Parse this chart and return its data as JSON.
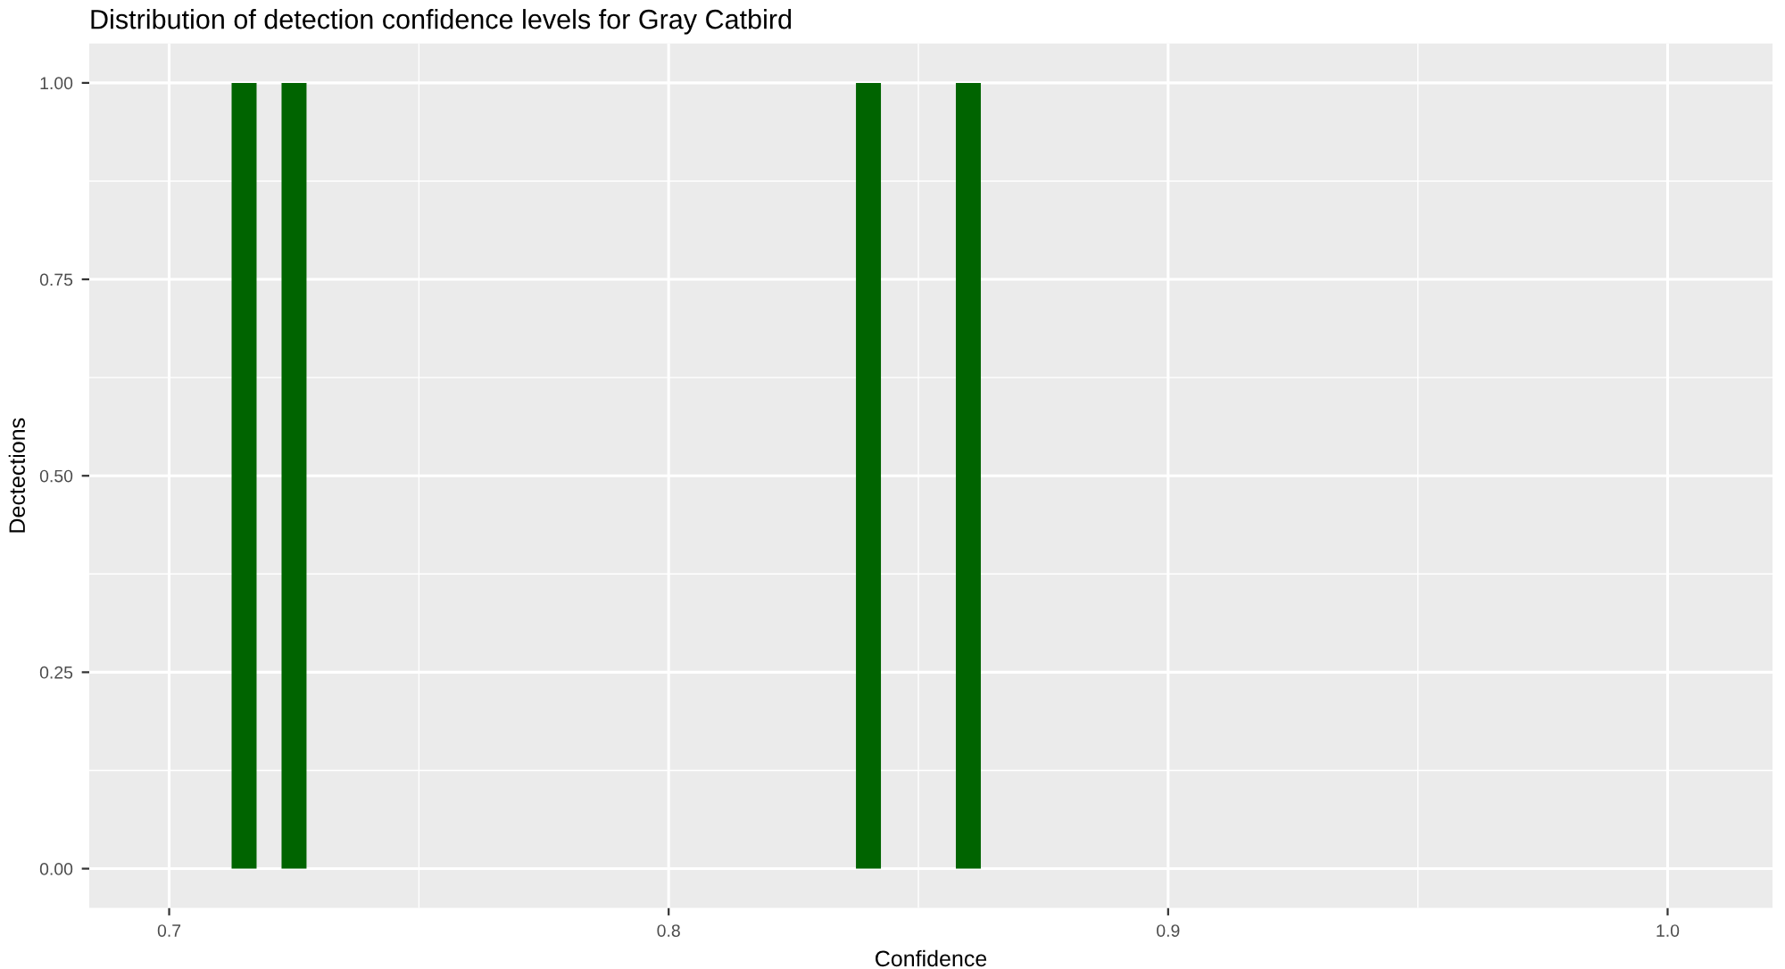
{
  "chart_data": {
    "type": "histogram",
    "title": "Distribution of detection confidence levels for Gray Catbird",
    "xlabel": "Confidence",
    "ylabel": "Dectections",
    "bins": [
      0.7125,
      0.7175,
      0.7225,
      0.7275,
      0.7325,
      0.7375,
      0.7425,
      0.7475,
      0.7525,
      0.7575,
      0.7625,
      0.7675,
      0.7725,
      0.7775,
      0.7825,
      0.7875,
      0.7925,
      0.7975,
      0.8025,
      0.8075,
      0.8125,
      0.8175,
      0.8225,
      0.8275,
      0.8325,
      0.8375,
      0.8425,
      0.8475,
      0.8525,
      0.8575,
      0.8625
    ],
    "values": [
      1,
      0,
      1,
      0,
      0,
      0,
      0,
      0,
      0,
      0,
      0,
      0,
      0,
      0,
      0,
      0,
      0,
      0,
      0,
      0,
      0,
      0,
      0,
      0,
      0,
      1,
      0,
      0,
      0,
      1
    ],
    "color": "#006400",
    "xlim": [
      0.684,
      1.021
    ],
    "xticks": [
      0.7,
      0.8,
      0.9,
      {
        "value": 1,
        "label": "1.0"
      }
    ],
    "ylim": [
      -0.05,
      1.05
    ],
    "yticks": [
      {
        "value": 0,
        "label": "0.00"
      },
      {
        "value": 0.25,
        "label": "0.25"
      },
      {
        "value": 0.5,
        "label": "0.50"
      },
      {
        "value": 0.75,
        "label": "0.75"
      },
      {
        "value": 1,
        "label": "1.00"
      }
    ],
    "grid": true
  }
}
